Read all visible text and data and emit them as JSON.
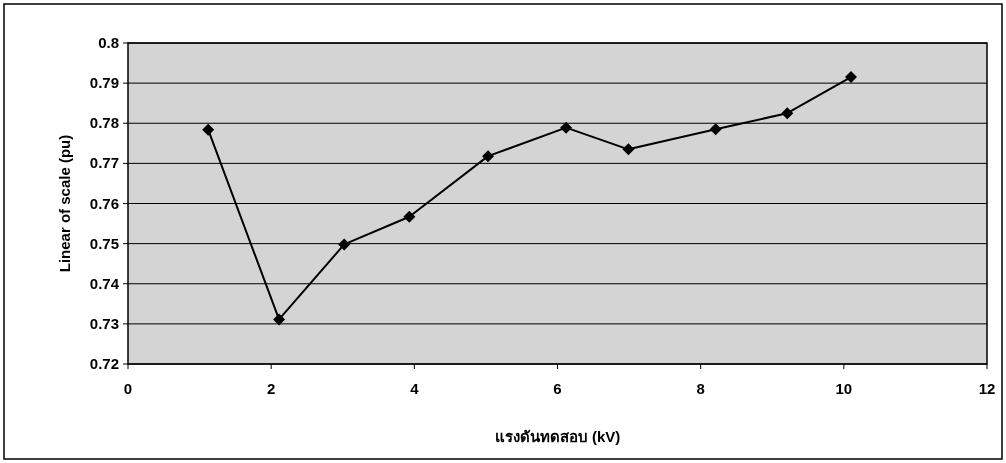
{
  "chart_data": {
    "type": "line",
    "xlabel": "แรงดันทดสอบ (kV)",
    "ylabel": "Linear of scale (pu)",
    "x": [
      1.12,
      2.11,
      3.02,
      3.93,
      5.03,
      6.12,
      6.99,
      8.21,
      9.21,
      10.1
    ],
    "series": [
      {
        "color": "#000000",
        "values": [
          0.7784,
          0.7311,
          0.7498,
          0.7567,
          0.7718,
          0.7789,
          0.7735,
          0.7785,
          0.7825,
          0.7915
        ]
      }
    ],
    "xlim": [
      0,
      12
    ],
    "xticks": [
      0,
      2,
      4,
      6,
      8,
      10,
      12
    ],
    "ylim": [
      0.72,
      0.8
    ],
    "yticks": [
      0.72,
      0.73,
      0.74,
      0.75,
      0.76,
      0.77,
      0.78,
      0.79,
      0.8
    ],
    "grid": "y",
    "marker": "diamond",
    "line_style": "solid"
  }
}
